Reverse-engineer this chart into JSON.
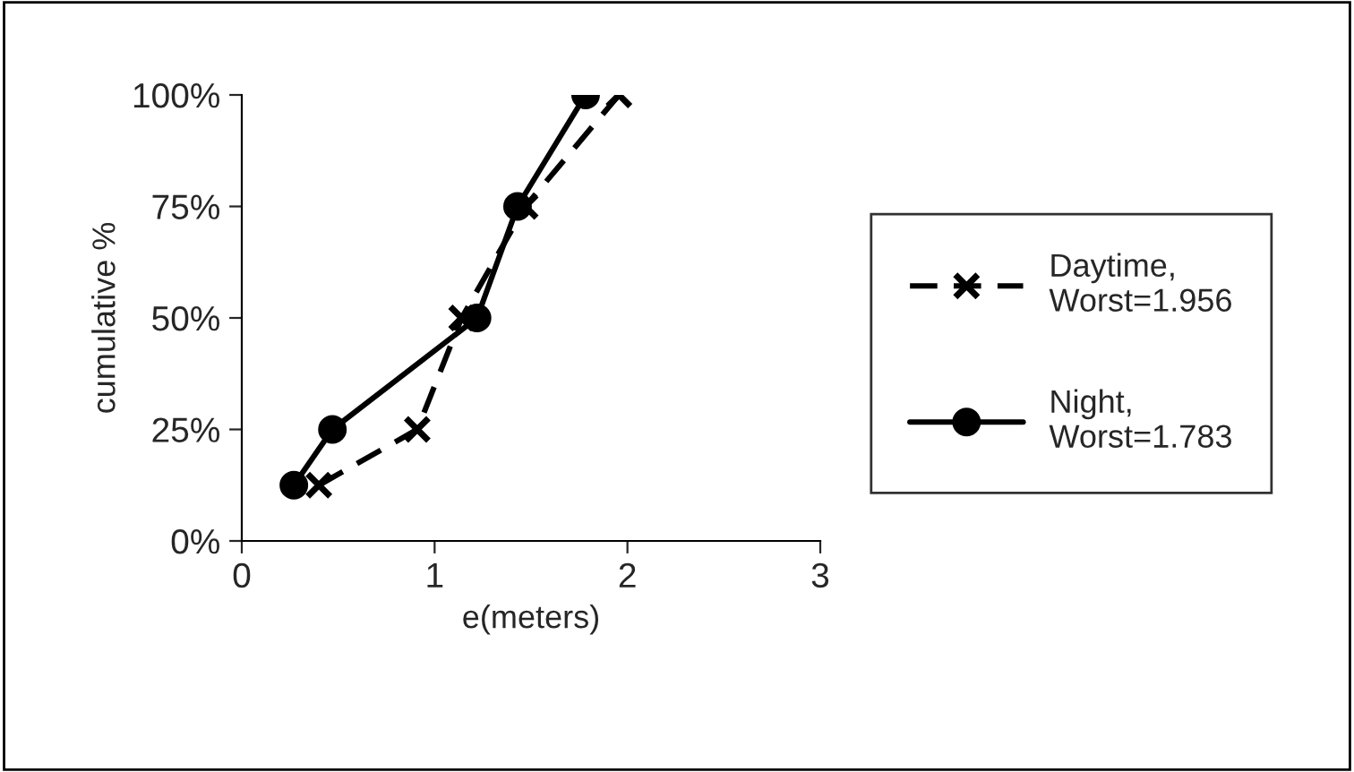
{
  "chart_data": {
    "type": "line",
    "xlabel": "e(meters)",
    "ylabel": "cumulative %",
    "xlim": [
      0,
      3
    ],
    "xticks": [
      0,
      1,
      2,
      3
    ],
    "ylim": [
      0,
      100
    ],
    "yticks": [
      {
        "value": 0,
        "label": "0%"
      },
      {
        "value": 25,
        "label": "25%"
      },
      {
        "value": 50,
        "label": "50%"
      },
      {
        "value": 75,
        "label": "75%"
      },
      {
        "value": 100,
        "label": "100%"
      }
    ],
    "grid": false,
    "legend": "right",
    "series": [
      {
        "name": "Daytime,\nWorst=1.956",
        "color": "#000000",
        "marker": "cross",
        "line_style": "dashed",
        "x": [
          0.4,
          0.91,
          1.14,
          1.47,
          1.956
        ],
        "values": [
          12.5,
          25,
          50,
          75,
          100
        ]
      },
      {
        "name": "Night,\nWorst=1.783",
        "color": "#000000",
        "marker": "circle",
        "line_style": "solid",
        "x": [
          0.27,
          0.47,
          1.22,
          1.43,
          1.783
        ],
        "values": [
          12.5,
          25,
          50,
          75,
          100
        ]
      }
    ]
  }
}
